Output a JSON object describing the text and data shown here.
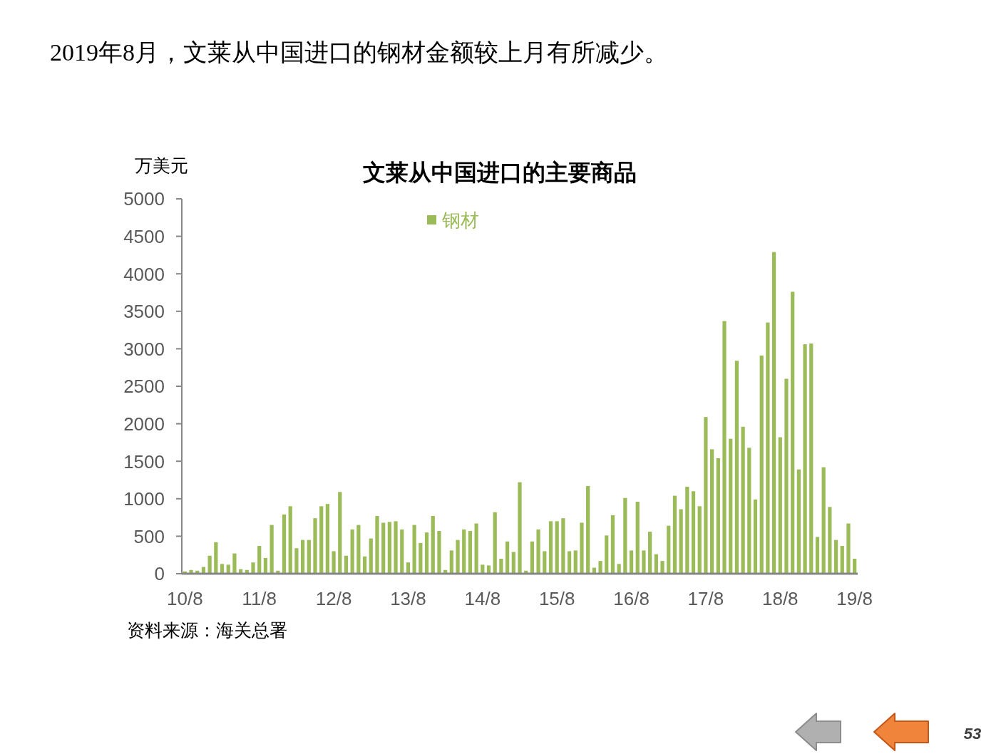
{
  "chart_data": {
    "type": "bar",
    "title": "2019年8月，文莱从中国进口的钢材金额较上月有所减少。",
    "subtitle": "文莱从中国进口的主要商品",
    "ylabel": "万美元",
    "annotations": [
      "资料来源：海关总署",
      "53"
    ],
    "categories": [
      "10/8",
      null,
      null,
      null,
      null,
      null,
      null,
      null,
      null,
      null,
      null,
      null,
      "11/8",
      null,
      null,
      null,
      null,
      null,
      null,
      null,
      null,
      null,
      null,
      null,
      "12/8",
      null,
      null,
      null,
      null,
      null,
      null,
      null,
      null,
      null,
      null,
      null,
      "13/8",
      null,
      null,
      null,
      null,
      null,
      null,
      null,
      null,
      null,
      null,
      null,
      "14/8",
      null,
      null,
      null,
      null,
      null,
      null,
      null,
      null,
      null,
      null,
      null,
      "15/8",
      null,
      null,
      null,
      null,
      null,
      null,
      null,
      null,
      null,
      null,
      null,
      "16/8",
      null,
      null,
      null,
      null,
      null,
      null,
      null,
      null,
      null,
      null,
      null,
      "17/8",
      null,
      null,
      null,
      null,
      null,
      null,
      null,
      null,
      null,
      null,
      null,
      "18/8",
      null,
      null,
      null,
      null,
      null,
      null,
      null,
      null,
      null,
      null,
      null,
      "19/8"
    ],
    "series": [
      {
        "name": "钢材",
        "color": "#9bbb59",
        "values": [
          30,
          50,
          40,
          90,
          240,
          420,
          130,
          120,
          270,
          60,
          50,
          150,
          370,
          210,
          650,
          40,
          790,
          900,
          340,
          450,
          450,
          740,
          900,
          930,
          300,
          1090,
          240,
          590,
          650,
          230,
          470,
          770,
          680,
          690,
          700,
          590,
          150,
          650,
          410,
          550,
          770,
          570,
          50,
          310,
          450,
          590,
          570,
          670,
          120,
          110,
          820,
          200,
          430,
          290,
          1220,
          40,
          430,
          590,
          300,
          700,
          700,
          740,
          300,
          310,
          680,
          1170,
          80,
          170,
          510,
          780,
          130,
          1010,
          310,
          960,
          310,
          560,
          260,
          170,
          640,
          1040,
          860,
          1160,
          1100,
          900,
          2090,
          1660,
          1540,
          3370,
          1800,
          2840,
          1960,
          1680,
          990,
          2910,
          3350,
          4290,
          1820,
          2600,
          3760,
          1390,
          3060,
          3070,
          490,
          1420,
          890,
          450,
          370,
          670,
          200
        ]
      }
    ],
    "ylim": [
      0,
      5000
    ],
    "yticks": [
      0,
      500,
      1000,
      1500,
      2000,
      2500,
      3000,
      3500,
      4000,
      4500,
      5000
    ],
    "legend": "top"
  }
}
